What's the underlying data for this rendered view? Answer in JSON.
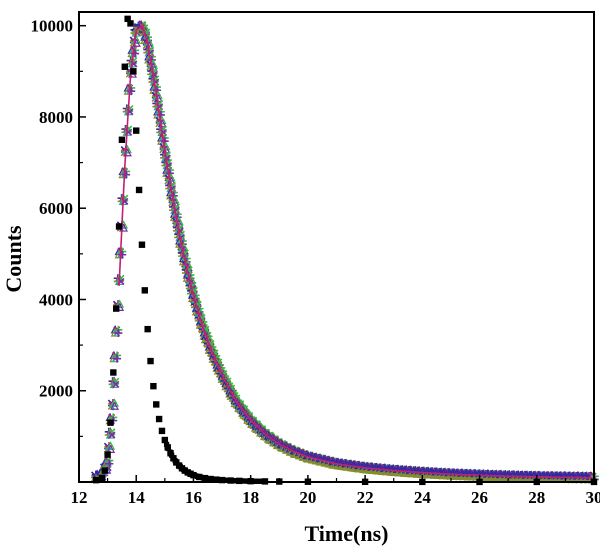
{
  "chart_data": {
    "type": "scatter",
    "title": "",
    "xlabel": "Time(ns)",
    "ylabel": "Counts",
    "xlim": [
      12,
      30
    ],
    "ylim": [
      0,
      10300
    ],
    "x_ticks": [
      12,
      14,
      16,
      18,
      20,
      22,
      24,
      26,
      28,
      30
    ],
    "x_tick_labels": [
      "12",
      "14",
      "16",
      "18",
      "20",
      "22",
      "24",
      "26",
      "28",
      "30"
    ],
    "y_ticks": [
      2000,
      4000,
      6000,
      8000,
      10000
    ],
    "y_tick_labels": [
      "2000",
      "4000",
      "6000",
      "8000",
      "10000"
    ],
    "grid": false,
    "legend": "none",
    "series": [
      {
        "role": "instrument response",
        "marker": "square",
        "color": "#000000",
        "x": [
          12.6,
          12.8,
          12.9,
          13.0,
          13.1,
          13.2,
          13.3,
          13.4,
          13.5,
          13.6,
          13.7,
          13.8,
          13.9,
          14.0,
          14.1,
          14.2,
          14.3,
          14.4,
          14.5,
          14.6,
          14.7,
          14.8,
          14.9,
          15.0,
          15.1,
          15.2,
          15.3,
          15.4,
          15.5,
          15.6,
          15.7,
          15.8,
          15.9,
          16.0,
          16.2,
          16.4,
          16.6,
          16.8,
          17.0,
          17.3,
          17.6,
          18.0,
          18.5,
          19.0,
          20.0,
          22.0,
          24.0,
          26.0,
          28.0,
          30.0
        ],
        "y": [
          40,
          90,
          250,
          600,
          1300,
          2400,
          3800,
          5600,
          7500,
          9100,
          10150,
          10050,
          9000,
          7700,
          6400,
          5200,
          4200,
          3350,
          2650,
          2100,
          1700,
          1380,
          1120,
          920,
          760,
          630,
          520,
          430,
          360,
          300,
          250,
          210,
          180,
          150,
          110,
          85,
          65,
          52,
          42,
          32,
          25,
          18,
          13,
          10,
          6,
          4,
          3,
          2,
          2,
          2
        ]
      },
      {
        "role": "decay curves",
        "marker": "mixed",
        "colors": [
          "#2a2aa8",
          "#c41e74",
          "#2fbf3a",
          "#8c8c23",
          "#2aa6a6",
          "#7a2aa8"
        ],
        "x": [
          12.6,
          12.8,
          13.0,
          13.2,
          13.4,
          13.6,
          13.8,
          14.0,
          14.2,
          14.3,
          14.4,
          14.6,
          14.8,
          15.0,
          15.2,
          15.4,
          15.6,
          15.8,
          16.0,
          16.3,
          16.6,
          17.0,
          17.5,
          18.0,
          18.5,
          19.0,
          19.5,
          20.0,
          21.0,
          22.0,
          23.0,
          24.0,
          25.0,
          26.0,
          27.0,
          28.0,
          29.0,
          30.0
        ],
        "y": [
          120,
          150,
          400,
          1800,
          4300,
          6900,
          8900,
          9900,
          10000,
          9850,
          9600,
          8900,
          8100,
          7250,
          6500,
          5800,
          5150,
          4600,
          4100,
          3450,
          2930,
          2350,
          1760,
          1350,
          1050,
          830,
          670,
          550,
          400,
          310,
          250,
          205,
          170,
          145,
          125,
          110,
          100,
          90
        ]
      }
    ]
  }
}
